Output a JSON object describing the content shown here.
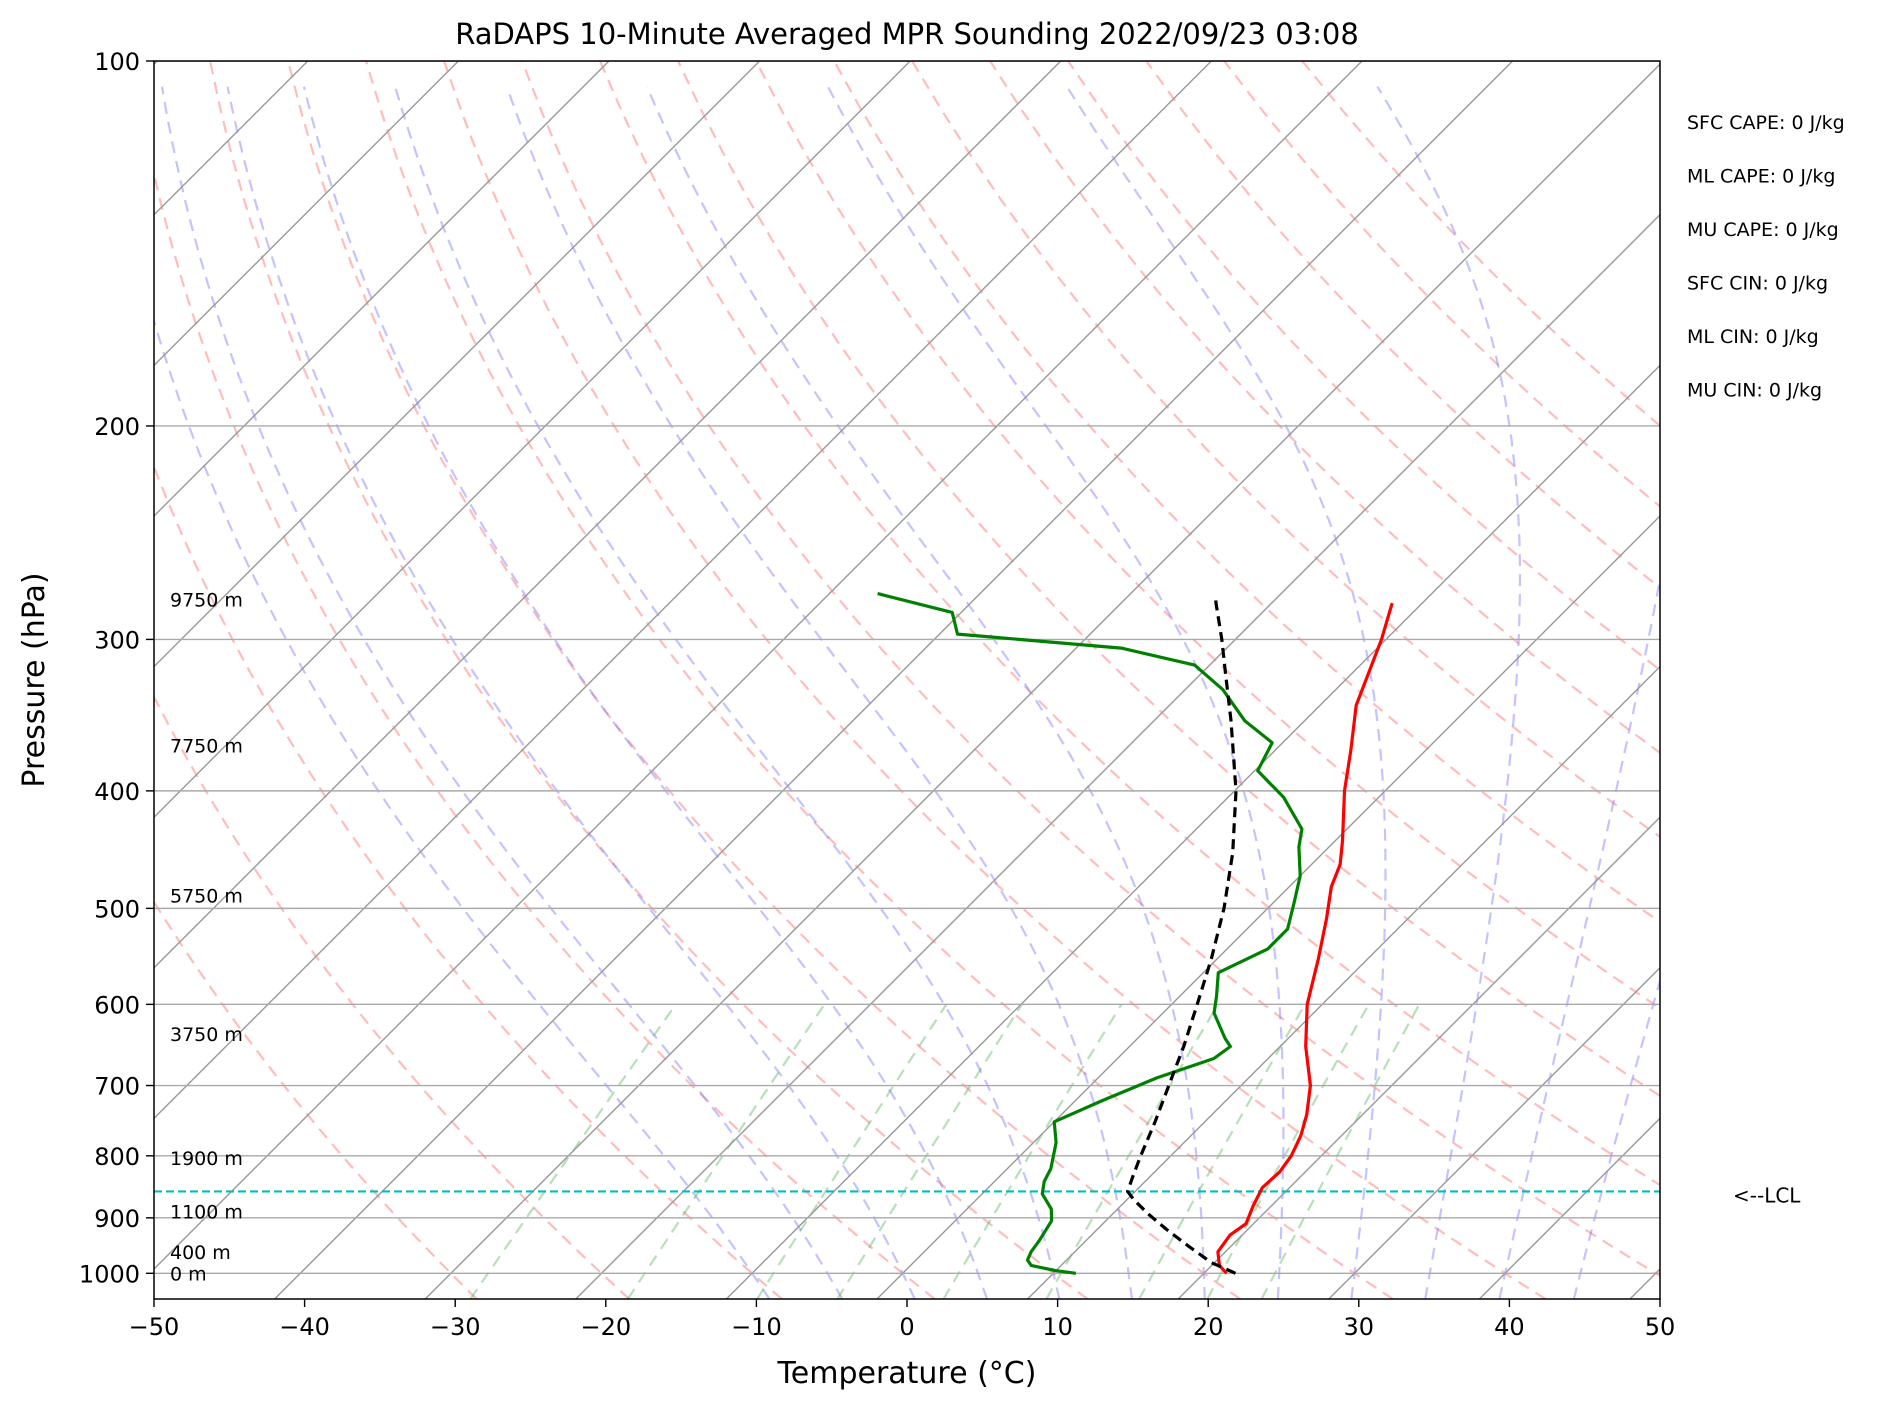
{
  "chart_data": {
    "type": "line",
    "subtype": "skew-t log-p sounding",
    "title": "RaDAPS 10-Minute Averaged MPR Sounding 2022/09/23 03:08",
    "xlabel": "Temperature (°C)",
    "ylabel": "Pressure (hPa)",
    "xlim": [
      -50,
      50
    ],
    "ylim": [
      1050,
      100
    ],
    "y_scale": "log",
    "grid": true,
    "x_ticks": [
      "−50",
      "−40",
      "−30",
      "−20",
      "−10",
      "0",
      "10",
      "20",
      "30",
      "40",
      "50"
    ],
    "x_tick_values": [
      -50,
      -40,
      -30,
      -20,
      -10,
      0,
      10,
      20,
      30,
      40,
      50
    ],
    "y_ticks": [
      "100",
      "200",
      "300",
      "400",
      "500",
      "600",
      "700",
      "800",
      "900",
      "1000"
    ],
    "y_tick_values": [
      100,
      200,
      300,
      400,
      500,
      600,
      700,
      800,
      900,
      1000
    ],
    "series": [
      {
        "kind": "temperature",
        "color": "#ff0000",
        "points": [
          [
            1000,
            21.5
          ],
          [
            985,
            20.5
          ],
          [
            960,
            19.5
          ],
          [
            930,
            19.2
          ],
          [
            910,
            19.5
          ],
          [
            880,
            18.8
          ],
          [
            850,
            18.2
          ],
          [
            825,
            18.3
          ],
          [
            800,
            18.0
          ],
          [
            770,
            17.3
          ],
          [
            740,
            16.3
          ],
          [
            700,
            14.6
          ],
          [
            650,
            11.7
          ],
          [
            600,
            9.0
          ],
          [
            550,
            6.7
          ],
          [
            510,
            4.6
          ],
          [
            480,
            2.8
          ],
          [
            460,
            1.9
          ],
          [
            440,
            0.5
          ],
          [
            400,
            -2.7
          ],
          [
            370,
            -5.0
          ],
          [
            340,
            -7.6
          ],
          [
            300,
            -10.3
          ],
          [
            280,
            -12.0
          ]
        ]
      },
      {
        "kind": "dewpoint",
        "color": "#008000",
        "points": [
          [
            1000,
            11.5
          ],
          [
            995,
            10.0
          ],
          [
            985,
            8.0
          ],
          [
            975,
            7.4
          ],
          [
            960,
            7.1
          ],
          [
            940,
            6.9
          ],
          [
            905,
            6.4
          ],
          [
            885,
            5.6
          ],
          [
            860,
            4.0
          ],
          [
            840,
            3.3
          ],
          [
            820,
            2.9
          ],
          [
            780,
            1.5
          ],
          [
            750,
            0.0
          ],
          [
            720,
            1.8
          ],
          [
            690,
            3.9
          ],
          [
            665,
            6.4
          ],
          [
            650,
            6.7
          ],
          [
            640,
            5.8
          ],
          [
            610,
            3.4
          ],
          [
            590,
            2.4
          ],
          [
            565,
            1.0
          ],
          [
            540,
            2.7
          ],
          [
            520,
            2.7
          ],
          [
            495,
            1.4
          ],
          [
            470,
            0.0
          ],
          [
            445,
            -2.0
          ],
          [
            430,
            -3.0
          ],
          [
            405,
            -6.3
          ],
          [
            385,
            -9.8
          ],
          [
            365,
            -10.7
          ],
          [
            350,
            -14.0
          ],
          [
            330,
            -17.5
          ],
          [
            315,
            -21.0
          ],
          [
            305,
            -27.0
          ],
          [
            297,
            -38.8
          ],
          [
            285,
            -40.6
          ],
          [
            275,
            -46.8
          ]
        ]
      },
      {
        "kind": "parcel",
        "color": "#000000",
        "points": [
          [
            1000,
            22.1
          ],
          [
            980,
            19.8
          ],
          [
            950,
            17.2
          ],
          [
            920,
            14.6
          ],
          [
            895,
            12.5
          ],
          [
            870,
            10.5
          ],
          [
            856,
            9.5
          ],
          [
            830,
            8.8
          ],
          [
            800,
            8.0
          ],
          [
            750,
            6.7
          ],
          [
            700,
            5.2
          ],
          [
            650,
            3.6
          ],
          [
            600,
            1.7
          ],
          [
            550,
            -0.4
          ],
          [
            500,
            -2.9
          ],
          [
            450,
            -6.0
          ],
          [
            400,
            -9.9
          ],
          [
            350,
            -14.9
          ],
          [
            320,
            -18.4
          ],
          [
            300,
            -20.9
          ],
          [
            280,
            -23.7
          ],
          [
            277,
            -24.1
          ]
        ]
      }
    ],
    "lcl": {
      "pressure": 856,
      "label": "<--LCL"
    },
    "height_labels": [
      {
        "text": "9750 m",
        "pressure": 278
      },
      {
        "text": "7750 m",
        "pressure": 367
      },
      {
        "text": "5750 m",
        "pressure": 488
      },
      {
        "text": "3750 m",
        "pressure": 635
      },
      {
        "text": "1900 m",
        "pressure": 803
      },
      {
        "text": "1100 m",
        "pressure": 889
      },
      {
        "text": "400 m",
        "pressure": 960
      },
      {
        "text": "0 m",
        "pressure": 1000
      }
    ],
    "indices": [
      "SFC CAPE: 0 J/kg",
      "ML CAPE: 0 J/kg",
      "MU CAPE: 0 J/kg",
      "SFC CIN: 0 J/kg",
      "ML CIN: 0 J/kg",
      "MU CIN: 0 J/kg"
    ],
    "dry_adiabats_theta_C": [
      -30,
      -20,
      -10,
      0,
      10,
      20,
      30,
      40,
      50,
      60,
      70,
      80,
      90,
      100,
      110,
      120,
      130,
      140,
      150
    ],
    "moist_adiabats_start_C": [
      -10,
      -5,
      0,
      5,
      10,
      15,
      20,
      25,
      30,
      35,
      40,
      45
    ],
    "mixing_ratio_lines_gkg": [
      0.4,
      1,
      2,
      3,
      5,
      8,
      12,
      16,
      20
    ]
  }
}
